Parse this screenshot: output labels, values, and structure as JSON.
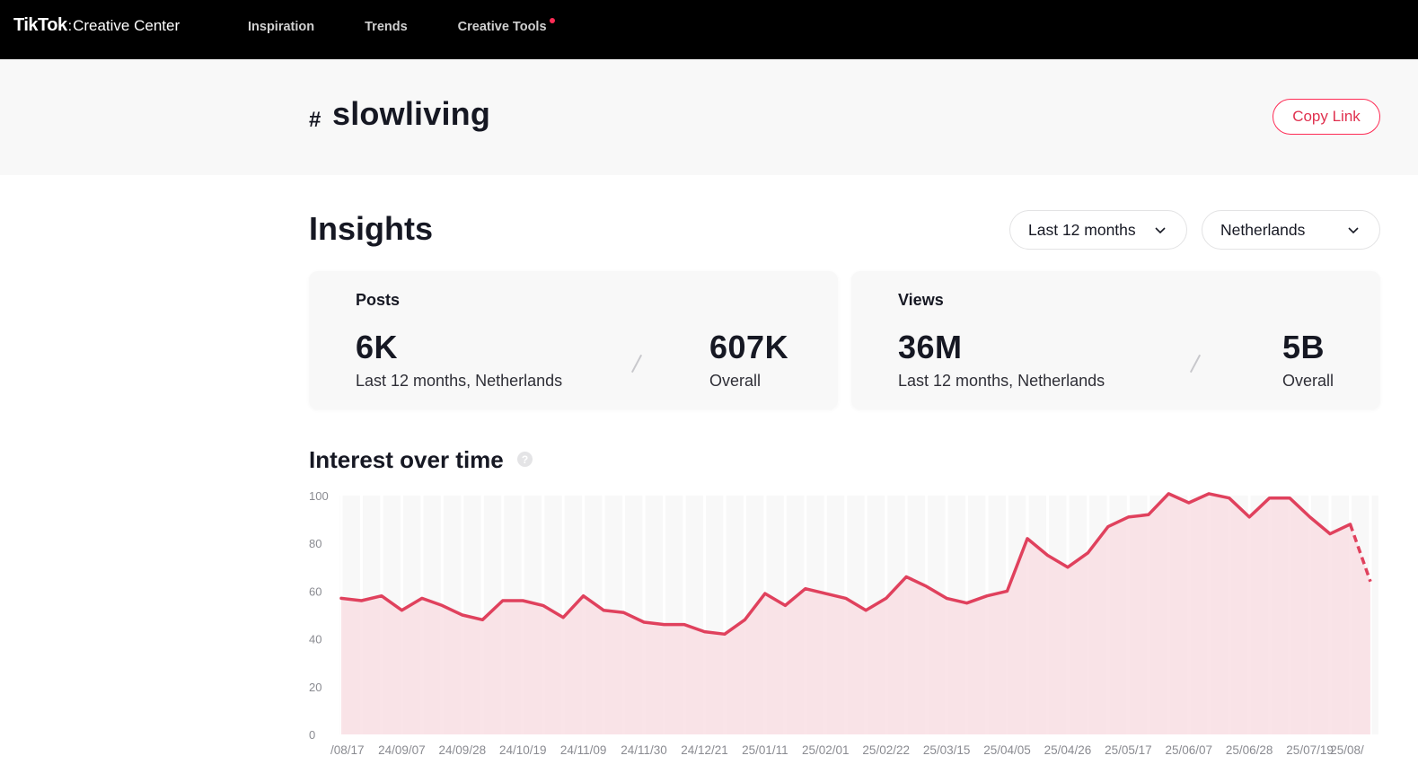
{
  "header": {
    "brand": "TikTok",
    "separator": ":",
    "product": "Creative Center",
    "nav": [
      {
        "label": "Inspiration"
      },
      {
        "label": "Trends"
      },
      {
        "label": "Creative Tools"
      }
    ]
  },
  "hero": {
    "hash": "#",
    "hashtag": "slowliving",
    "copy_link": "Copy Link"
  },
  "insights": {
    "title": "Insights",
    "period": "Last 12 months",
    "country": "Netherlands",
    "posts": {
      "label": "Posts",
      "value": "6K",
      "sub": "Last 12 months, Netherlands",
      "overall_value": "607K",
      "overall_label": "Overall"
    },
    "views": {
      "label": "Views",
      "value": "36M",
      "sub": "Last 12 months, Netherlands",
      "overall_value": "5B",
      "overall_label": "Overall"
    }
  },
  "interest": {
    "title": "Interest over time",
    "help": "?"
  },
  "colors": {
    "accent": "#fe2c55",
    "line": "#e0415d",
    "fill": "#f9dfe4"
  },
  "chart_data": {
    "type": "area",
    "title": "Interest over time",
    "ylim": [
      0,
      100
    ],
    "yticks": [
      0,
      20,
      40,
      60,
      80,
      100
    ],
    "xtick_labels": [
      "/08/17",
      "24/09/07",
      "24/09/28",
      "24/10/19",
      "24/11/09",
      "24/11/30",
      "24/12/21",
      "25/01/11",
      "25/02/01",
      "25/02/22",
      "25/03/15",
      "25/04/05",
      "25/04/26",
      "25/05/17",
      "25/06/07",
      "25/06/28",
      "25/07/19",
      "25/08/"
    ],
    "series": [
      {
        "name": "Interest",
        "values": [
          57,
          56,
          58,
          52,
          57,
          54,
          50,
          48,
          56,
          56,
          54,
          49,
          58,
          52,
          51,
          47,
          46,
          46,
          43,
          42,
          48,
          59,
          54,
          61,
          59,
          57,
          52,
          57,
          66,
          62,
          57,
          55,
          58,
          60,
          82,
          75,
          70,
          76,
          87,
          91,
          92,
          102,
          97,
          105,
          99,
          91,
          99,
          99,
          91,
          84,
          88,
          64
        ]
      }
    ]
  }
}
